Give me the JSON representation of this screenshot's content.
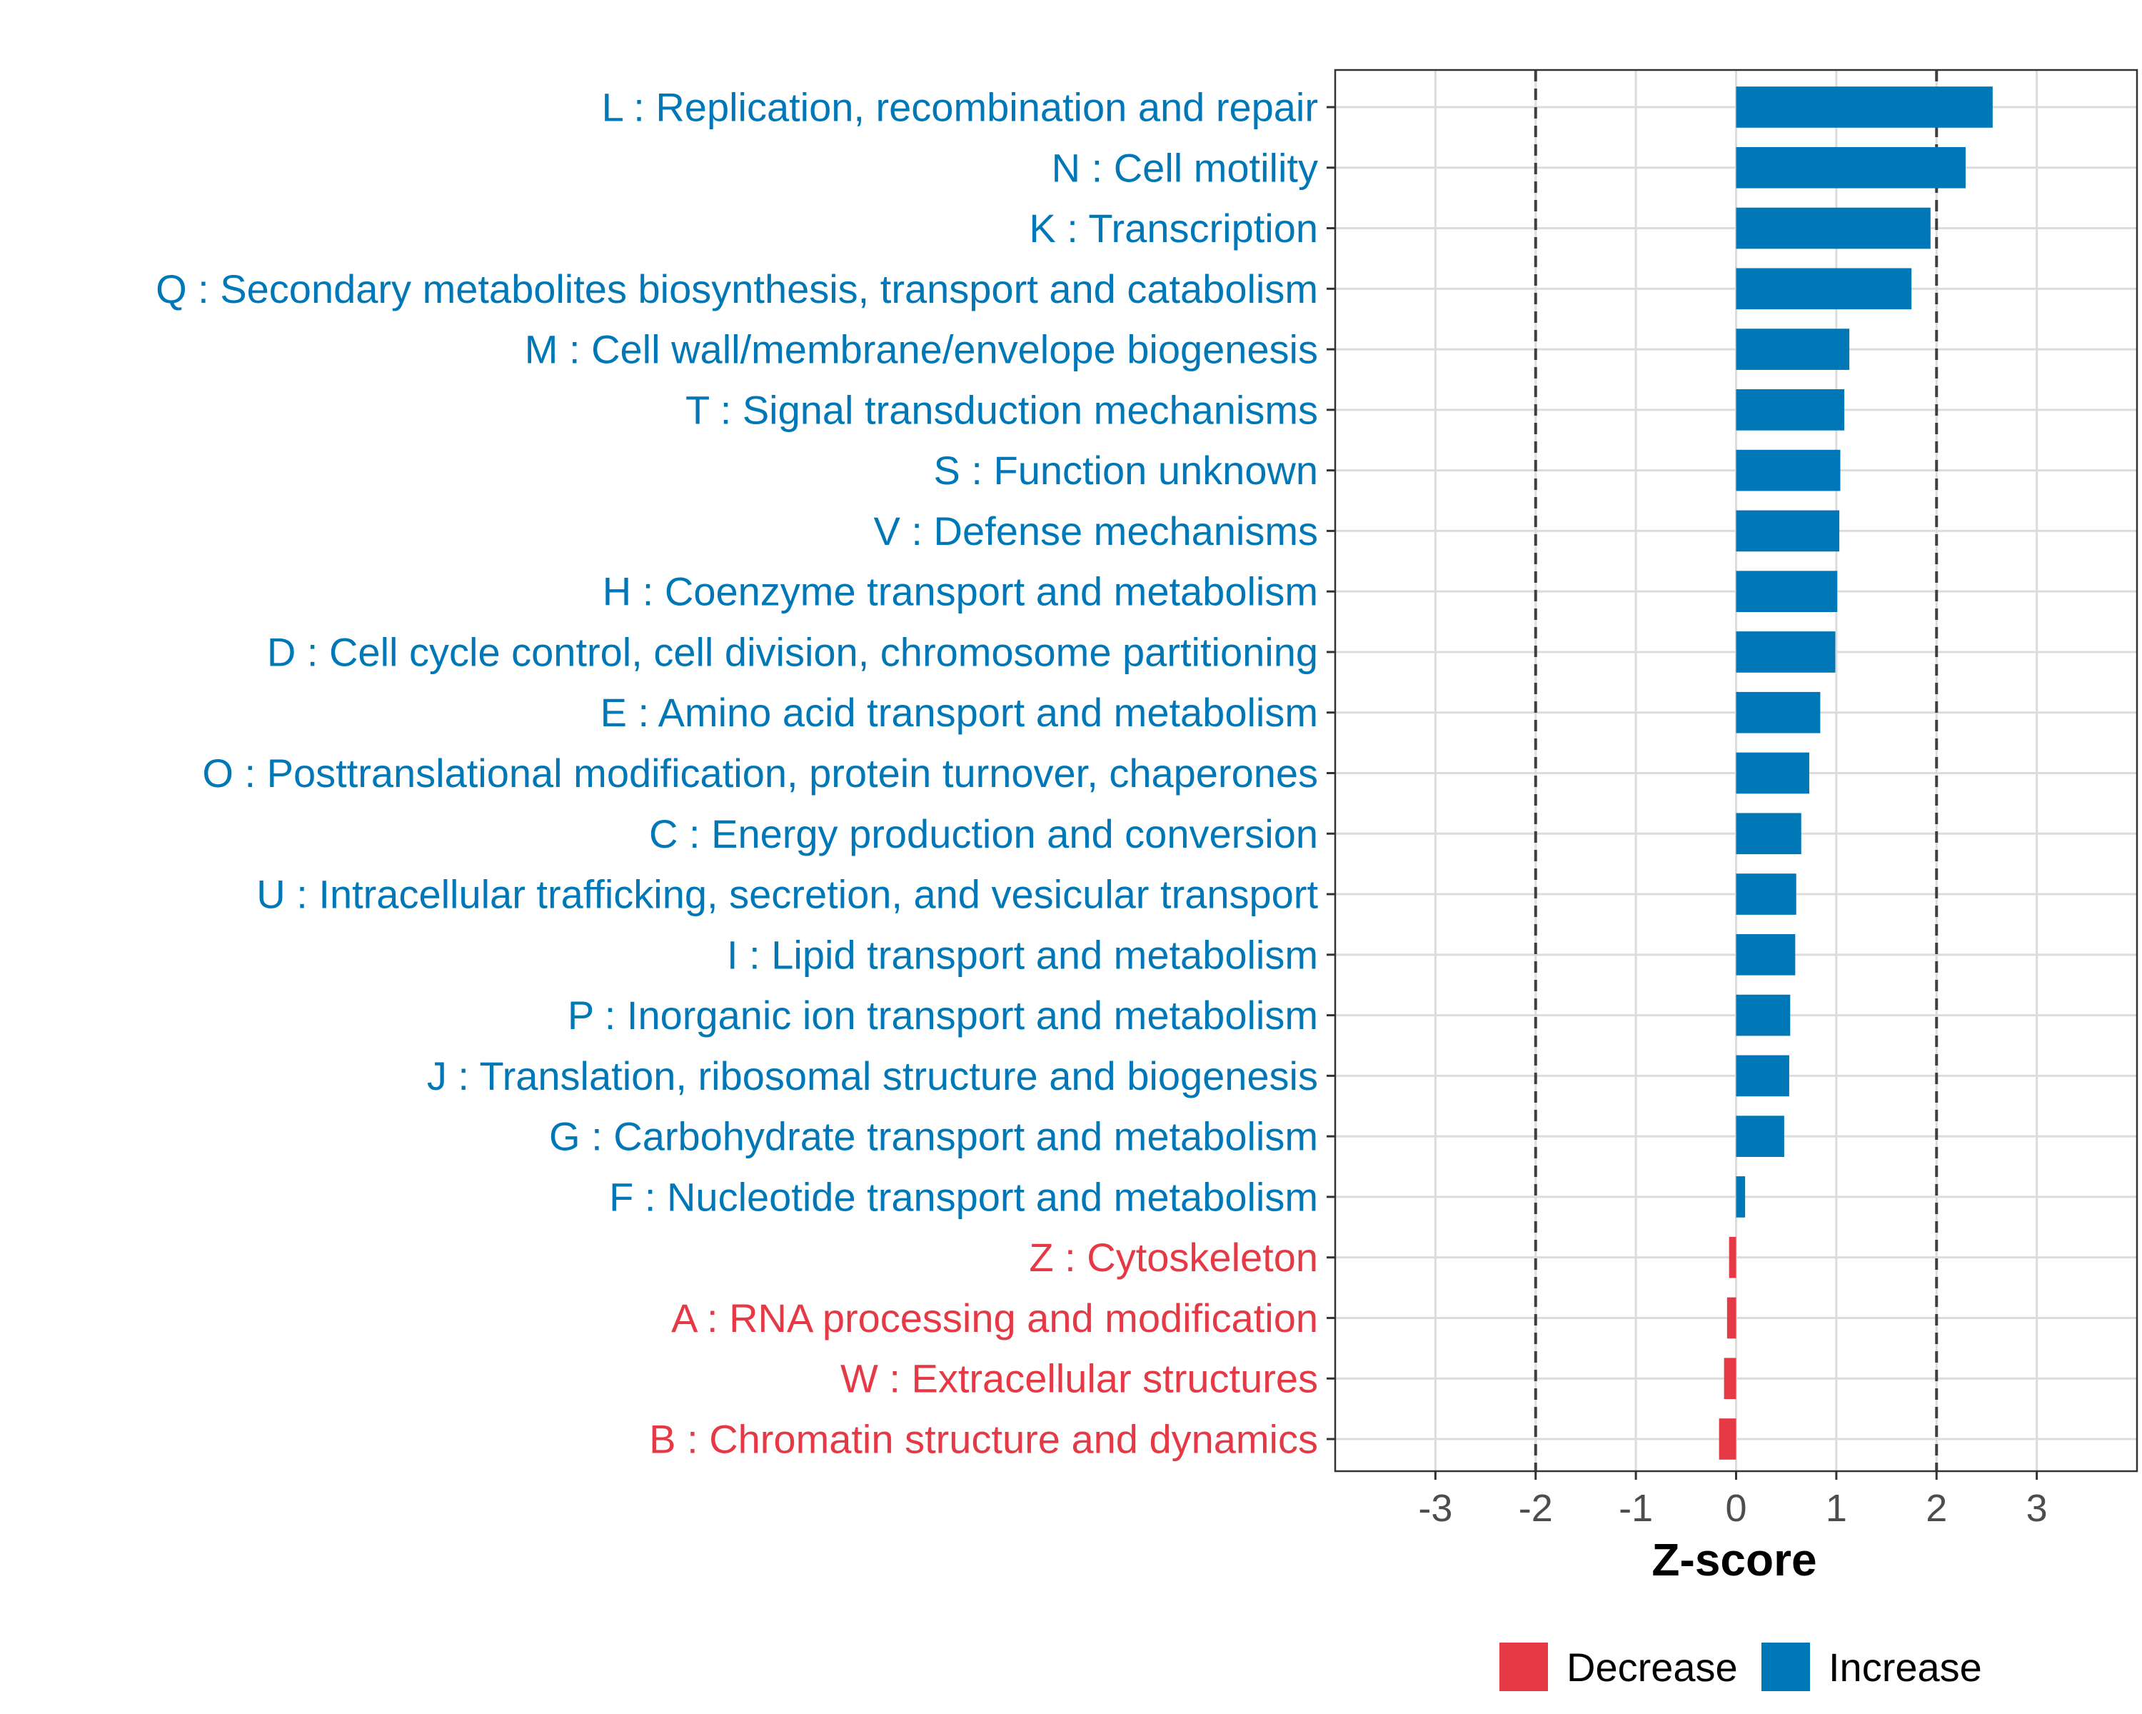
{
  "chart_data": {
    "type": "bar",
    "orientation": "horizontal",
    "title": "",
    "xlabel": "Z-score",
    "ylabel": "",
    "xlim": [
      -4,
      4
    ],
    "xticks": [
      -3,
      -2,
      -1,
      0,
      1,
      2,
      3
    ],
    "xtick_labels": [
      "-3",
      "-2",
      "-1",
      "0",
      "1",
      "2",
      "3"
    ],
    "reference_lines": [
      -2,
      2
    ],
    "grid": true,
    "legend_position": "bottom",
    "colors": {
      "increase": "#0077b6",
      "decrease": "#e63946"
    },
    "legend": [
      {
        "label": "Decrease",
        "key": "decrease"
      },
      {
        "label": "Increase",
        "key": "increase"
      }
    ],
    "categories": [
      "L : Replication, recombination and repair",
      "N : Cell motility",
      "K : Transcription",
      "Q : Secondary metabolites biosynthesis, transport and catabolism",
      "M : Cell wall/membrane/envelope biogenesis",
      "T : Signal transduction mechanisms",
      "S : Function unknown",
      "V : Defense mechanisms",
      "H : Coenzyme transport and metabolism",
      "D : Cell cycle control, cell division, chromosome partitioning",
      "E : Amino acid transport and metabolism",
      "O : Posttranslational modification, protein turnover, chaperones",
      "C : Energy production and conversion",
      "U : Intracellular trafficking, secretion, and vesicular transport",
      "I : Lipid transport and metabolism",
      "P : Inorganic ion transport and metabolism",
      "J : Translation, ribosomal structure and biogenesis",
      "G : Carbohydrate transport and metabolism",
      "F : Nucleotide transport and metabolism",
      "Z : Cytoskeleton",
      "A : RNA processing and modification",
      "W : Extracellular structures",
      "B : Chromatin structure and dynamics"
    ],
    "values": [
      2.56,
      2.29,
      1.94,
      1.75,
      1.13,
      1.08,
      1.04,
      1.03,
      1.01,
      0.99,
      0.84,
      0.73,
      0.65,
      0.6,
      0.59,
      0.54,
      0.53,
      0.48,
      0.09,
      -0.07,
      -0.09,
      -0.12,
      -0.17
    ]
  }
}
